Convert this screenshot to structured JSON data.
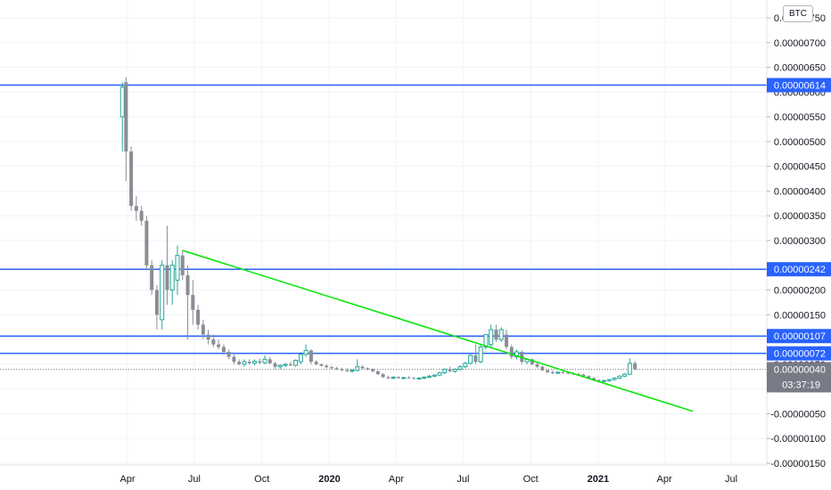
{
  "currency_label": "BTC",
  "countdown": "03:37:19",
  "colors": {
    "up": "#26a69a",
    "down": "#8a8d94",
    "hline": "#2962ff",
    "trendline": "#00e600",
    "price_badge_bg": "#2962ff",
    "last_price_bg": "#787b86",
    "grid": "#f0f3fa"
  },
  "chart_data": {
    "type": "candlestick",
    "ylim": [
      -1.5e-06,
      7.5e-06
    ],
    "y_ticks": [
      {
        "value": 7.5e-06,
        "label": "0.00000750"
      },
      {
        "value": 7e-06,
        "label": "0.00000700"
      },
      {
        "value": 6.5e-06,
        "label": "0.00000650"
      },
      {
        "value": 6e-06,
        "label": "0.00000600"
      },
      {
        "value": 5.5e-06,
        "label": "0.00000550"
      },
      {
        "value": 5e-06,
        "label": "0.00000500"
      },
      {
        "value": 4.5e-06,
        "label": "0.00000450"
      },
      {
        "value": 4e-06,
        "label": "0.00000400"
      },
      {
        "value": 3.5e-06,
        "label": "0.00000350"
      },
      {
        "value": 3e-06,
        "label": "0.00000300"
      },
      {
        "value": 2.5e-06,
        "label": "0.00000250"
      },
      {
        "value": 2e-06,
        "label": "0.00000200"
      },
      {
        "value": 1.5e-06,
        "label": "0.00000150"
      },
      {
        "value": 1e-06,
        "label": "0.00000100"
      },
      {
        "value": 5e-07,
        "label": "0.00000050"
      },
      {
        "value": 0.0,
        "label": "0.00000000"
      },
      {
        "value": -5e-07,
        "label": "-0.00000050"
      },
      {
        "value": -1e-06,
        "label": "-0.00000100"
      },
      {
        "value": -1.5e-06,
        "label": "-0.00000150"
      }
    ],
    "x_ticks": [
      {
        "date": "2019-04-01",
        "label": "Apr",
        "bold": false
      },
      {
        "date": "2019-07-01",
        "label": "Jul",
        "bold": false
      },
      {
        "date": "2019-10-01",
        "label": "Oct",
        "bold": false
      },
      {
        "date": "2020-01-01",
        "label": "2020",
        "bold": true
      },
      {
        "date": "2020-04-01",
        "label": "Apr",
        "bold": false
      },
      {
        "date": "2020-07-01",
        "label": "Jul",
        "bold": false
      },
      {
        "date": "2020-10-01",
        "label": "Oct",
        "bold": false
      },
      {
        "date": "2021-01-01",
        "label": "2021",
        "bold": true
      },
      {
        "date": "2021-04-01",
        "label": "Apr",
        "bold": false
      },
      {
        "date": "2021-07-01",
        "label": "Jul",
        "bold": false
      }
    ],
    "horizontal_lines": [
      {
        "value": 6.14e-06,
        "label": "0.00000614"
      },
      {
        "value": 2.42e-06,
        "label": "0.00000242"
      },
      {
        "value": 1.07e-06,
        "label": "0.00000107"
      },
      {
        "value": 7.2e-07,
        "label": "0.00000072"
      }
    ],
    "trendline": {
      "start": {
        "date": "2019-06-15",
        "value": 2.8e-06
      },
      "end": {
        "date": "2021-05-10",
        "value": -4.5e-07
      }
    },
    "last_price": {
      "value": 4e-07,
      "label": "0.00000040"
    },
    "candles": [
      {
        "date": "2019-03-25",
        "o": 5.5e-06,
        "h": 6.2e-06,
        "l": 4.8e-06,
        "c": 6.1e-06
      },
      {
        "date": "2019-03-30",
        "o": 6.2e-06,
        "h": 6.3e-06,
        "l": 4.2e-06,
        "c": 4.8e-06
      },
      {
        "date": "2019-04-06",
        "o": 4.8e-06,
        "h": 4.9e-06,
        "l": 3.6e-06,
        "c": 3.7e-06
      },
      {
        "date": "2019-04-13",
        "o": 3.7e-06,
        "h": 3.9e-06,
        "l": 3.4e-06,
        "c": 3.6e-06
      },
      {
        "date": "2019-04-20",
        "o": 3.6e-06,
        "h": 3.7e-06,
        "l": 3.3e-06,
        "c": 3.4e-06
      },
      {
        "date": "2019-04-27",
        "o": 3.4e-06,
        "h": 3.5e-06,
        "l": 2.4e-06,
        "c": 2.5e-06
      },
      {
        "date": "2019-05-04",
        "o": 2.5e-06,
        "h": 2.6e-06,
        "l": 1.9e-06,
        "c": 2e-06
      },
      {
        "date": "2019-05-11",
        "o": 2e-06,
        "h": 2.1e-06,
        "l": 1.2e-06,
        "c": 1.5e-06
      },
      {
        "date": "2019-05-18",
        "o": 1.4e-06,
        "h": 2.6e-06,
        "l": 1.2e-06,
        "c": 2.5e-06
      },
      {
        "date": "2019-05-25",
        "o": 2.5e-06,
        "h": 3.3e-06,
        "l": 1.7e-06,
        "c": 2e-06
      },
      {
        "date": "2019-06-01",
        "o": 2e-06,
        "h": 2.6e-06,
        "l": 1.7e-06,
        "c": 2.5e-06
      },
      {
        "date": "2019-06-08",
        "o": 2.2e-06,
        "h": 2.9e-06,
        "l": 1.9e-06,
        "c": 2.7e-06
      },
      {
        "date": "2019-06-15",
        "o": 2.7e-06,
        "h": 2.8e-06,
        "l": 2.2e-06,
        "c": 2.3e-06
      },
      {
        "date": "2019-06-22",
        "o": 2.3e-06,
        "h": 2.5e-06,
        "l": 1e-06,
        "c": 1.9e-06
      },
      {
        "date": "2019-06-29",
        "o": 1.9e-06,
        "h": 2.2e-06,
        "l": 1.3e-06,
        "c": 1.6e-06
      },
      {
        "date": "2019-07-06",
        "o": 1.6e-06,
        "h": 1.7e-06,
        "l": 1.2e-06,
        "c": 1.3e-06
      },
      {
        "date": "2019-07-13",
        "o": 1.3e-06,
        "h": 1.4e-06,
        "l": 1e-06,
        "c": 1.1e-06
      },
      {
        "date": "2019-07-20",
        "o": 1.1e-06,
        "h": 1.2e-06,
        "l": 9e-07,
        "c": 1e-06
      },
      {
        "date": "2019-07-27",
        "o": 1e-06,
        "h": 1.1e-06,
        "l": 8.5e-07,
        "c": 9e-07
      },
      {
        "date": "2019-08-03",
        "o": 9e-07,
        "h": 1e-06,
        "l": 8e-07,
        "c": 8.5e-07
      },
      {
        "date": "2019-08-10",
        "o": 8.5e-07,
        "h": 9e-07,
        "l": 7e-07,
        "c": 7.5e-07
      },
      {
        "date": "2019-08-17",
        "o": 7.5e-07,
        "h": 8e-07,
        "l": 6e-07,
        "c": 6.5e-07
      },
      {
        "date": "2019-08-24",
        "o": 6.5e-07,
        "h": 7e-07,
        "l": 5e-07,
        "c": 5.5e-07
      },
      {
        "date": "2019-08-31",
        "o": 5.5e-07,
        "h": 6e-07,
        "l": 4.8e-07,
        "c": 5e-07
      },
      {
        "date": "2019-09-07",
        "o": 5e-07,
        "h": 6e-07,
        "l": 4.5e-07,
        "c": 5.5e-07
      },
      {
        "date": "2019-09-14",
        "o": 5.5e-07,
        "h": 6e-07,
        "l": 5e-07,
        "c": 5.2e-07
      },
      {
        "date": "2019-09-21",
        "o": 5.2e-07,
        "h": 6e-07,
        "l": 4.8e-07,
        "c": 5.6e-07
      },
      {
        "date": "2019-09-28",
        "o": 5.6e-07,
        "h": 6.2e-07,
        "l": 5e-07,
        "c": 5.3e-07
      },
      {
        "date": "2019-10-05",
        "o": 5.3e-07,
        "h": 6.8e-07,
        "l": 5e-07,
        "c": 6e-07
      },
      {
        "date": "2019-10-12",
        "o": 6e-07,
        "h": 6.5e-07,
        "l": 5e-07,
        "c": 5.2e-07
      },
      {
        "date": "2019-10-19",
        "o": 5.2e-07,
        "h": 5.5e-07,
        "l": 4e-07,
        "c": 4.5e-07
      },
      {
        "date": "2019-10-26",
        "o": 4.5e-07,
        "h": 5e-07,
        "l": 4e-07,
        "c": 4.8e-07
      },
      {
        "date": "2019-11-02",
        "o": 4.8e-07,
        "h": 5.2e-07,
        "l": 4.4e-07,
        "c": 5e-07
      },
      {
        "date": "2019-11-09",
        "o": 5e-07,
        "h": 5.5e-07,
        "l": 4.6e-07,
        "c": 4.8e-07
      },
      {
        "date": "2019-11-16",
        "o": 4.8e-07,
        "h": 6e-07,
        "l": 4.5e-07,
        "c": 5.8e-07
      },
      {
        "date": "2019-11-23",
        "o": 5.5e-07,
        "h": 7.5e-07,
        "l": 5e-07,
        "c": 7e-07
      },
      {
        "date": "2019-11-30",
        "o": 7e-07,
        "h": 9e-07,
        "l": 6.5e-07,
        "c": 7.8e-07
      },
      {
        "date": "2019-12-07",
        "o": 7.8e-07,
        "h": 8e-07,
        "l": 5e-07,
        "c": 5.5e-07
      },
      {
        "date": "2019-12-14",
        "o": 5.5e-07,
        "h": 5.8e-07,
        "l": 4.8e-07,
        "c": 5e-07
      },
      {
        "date": "2019-12-21",
        "o": 5e-07,
        "h": 5.2e-07,
        "l": 4.5e-07,
        "c": 4.7e-07
      },
      {
        "date": "2019-12-28",
        "o": 4.7e-07,
        "h": 5e-07,
        "l": 4.2e-07,
        "c": 4.4e-07
      },
      {
        "date": "2020-01-04",
        "o": 4.4e-07,
        "h": 4.7e-07,
        "l": 4e-07,
        "c": 4.2e-07
      },
      {
        "date": "2020-01-11",
        "o": 4.2e-07,
        "h": 4.5e-07,
        "l": 3.8e-07,
        "c": 4e-07
      },
      {
        "date": "2020-01-18",
        "o": 4e-07,
        "h": 4.3e-07,
        "l": 3.6e-07,
        "c": 3.8e-07
      },
      {
        "date": "2020-01-25",
        "o": 3.8e-07,
        "h": 4.2e-07,
        "l": 3.4e-07,
        "c": 3.6e-07
      },
      {
        "date": "2020-02-01",
        "o": 3.6e-07,
        "h": 4e-07,
        "l": 3.3e-07,
        "c": 3.8e-07
      },
      {
        "date": "2020-02-08",
        "o": 3.8e-07,
        "h": 6e-07,
        "l": 3.5e-07,
        "c": 4.5e-07
      },
      {
        "date": "2020-02-15",
        "o": 4.5e-07,
        "h": 4.8e-07,
        "l": 4e-07,
        "c": 4.2e-07
      },
      {
        "date": "2020-02-22",
        "o": 4.2e-07,
        "h": 4.4e-07,
        "l": 3.8e-07,
        "c": 4e-07
      },
      {
        "date": "2020-02-29",
        "o": 4e-07,
        "h": 4.2e-07,
        "l": 3.4e-07,
        "c": 3.6e-07
      },
      {
        "date": "2020-03-07",
        "o": 3.6e-07,
        "h": 3.8e-07,
        "l": 2.8e-07,
        "c": 3e-07
      },
      {
        "date": "2020-03-14",
        "o": 3e-07,
        "h": 3.2e-07,
        "l": 2.2e-07,
        "c": 2.4e-07
      },
      {
        "date": "2020-03-21",
        "o": 2.4e-07,
        "h": 2.7e-07,
        "l": 2e-07,
        "c": 2.2e-07
      },
      {
        "date": "2020-03-28",
        "o": 2.2e-07,
        "h": 2.6e-07,
        "l": 2e-07,
        "c": 2.4e-07
      },
      {
        "date": "2020-04-04",
        "o": 2.4e-07,
        "h": 2.6e-07,
        "l": 2.1e-07,
        "c": 2.2e-07
      },
      {
        "date": "2020-04-11",
        "o": 2.2e-07,
        "h": 2.5e-07,
        "l": 2e-07,
        "c": 2.3e-07
      },
      {
        "date": "2020-04-18",
        "o": 2.3e-07,
        "h": 2.6e-07,
        "l": 2.1e-07,
        "c": 2.2e-07
      },
      {
        "date": "2020-04-25",
        "o": 2.2e-07,
        "h": 2.5e-07,
        "l": 2e-07,
        "c": 2.1e-07
      },
      {
        "date": "2020-05-02",
        "o": 2.1e-07,
        "h": 2.4e-07,
        "l": 2e-07,
        "c": 2.2e-07
      },
      {
        "date": "2020-05-09",
        "o": 2.2e-07,
        "h": 2.6e-07,
        "l": 2e-07,
        "c": 2.4e-07
      },
      {
        "date": "2020-05-16",
        "o": 2.4e-07,
        "h": 2.8e-07,
        "l": 2.2e-07,
        "c": 2.6e-07
      },
      {
        "date": "2020-05-23",
        "o": 2.6e-07,
        "h": 3e-07,
        "l": 2.4e-07,
        "c": 2.8e-07
      },
      {
        "date": "2020-05-30",
        "o": 2.8e-07,
        "h": 3.5e-07,
        "l": 2.6e-07,
        "c": 3.3e-07
      },
      {
        "date": "2020-06-06",
        "o": 3.3e-07,
        "h": 4.2e-07,
        "l": 3e-07,
        "c": 4e-07
      },
      {
        "date": "2020-06-13",
        "o": 4e-07,
        "h": 4.5e-07,
        "l": 3.4e-07,
        "c": 3.6e-07
      },
      {
        "date": "2020-06-20",
        "o": 3.6e-07,
        "h": 4.2e-07,
        "l": 3.3e-07,
        "c": 4e-07
      },
      {
        "date": "2020-06-27",
        "o": 4e-07,
        "h": 4.8e-07,
        "l": 3.7e-07,
        "c": 4.5e-07
      },
      {
        "date": "2020-07-04",
        "o": 4.5e-07,
        "h": 5.5e-07,
        "l": 4.2e-07,
        "c": 5.2e-07
      },
      {
        "date": "2020-07-11",
        "o": 5.2e-07,
        "h": 7e-07,
        "l": 5e-07,
        "c": 6.8e-07
      },
      {
        "date": "2020-07-18",
        "o": 6.8e-07,
        "h": 9e-07,
        "l": 5e-07,
        "c": 5.5e-07
      },
      {
        "date": "2020-07-25",
        "o": 5.5e-07,
        "h": 9e-07,
        "l": 5.2e-07,
        "c": 8.5e-07
      },
      {
        "date": "2020-08-01",
        "o": 8.5e-07,
        "h": 1.1e-06,
        "l": 8e-07,
        "c": 1.1e-06
      },
      {
        "date": "2020-08-08",
        "o": 9e-07,
        "h": 1.3e-06,
        "l": 8.5e-07,
        "c": 1.2e-06
      },
      {
        "date": "2020-08-15",
        "o": 1.2e-06,
        "h": 1.3e-06,
        "l": 9.5e-07,
        "c": 1e-06
      },
      {
        "date": "2020-08-22",
        "o": 1e-06,
        "h": 1.25e-06,
        "l": 9.5e-07,
        "c": 1.2e-06
      },
      {
        "date": "2020-08-29",
        "o": 1.1e-06,
        "h": 1.2e-06,
        "l": 8e-07,
        "c": 8.5e-07
      },
      {
        "date": "2020-09-05",
        "o": 8.5e-07,
        "h": 9e-07,
        "l": 6e-07,
        "c": 6.5e-07
      },
      {
        "date": "2020-09-12",
        "o": 6.5e-07,
        "h": 8e-07,
        "l": 6e-07,
        "c": 7.5e-07
      },
      {
        "date": "2020-09-19",
        "o": 7.5e-07,
        "h": 7.8e-07,
        "l": 5e-07,
        "c": 5.5e-07
      },
      {
        "date": "2020-09-26",
        "o": 5.5e-07,
        "h": 6.2e-07,
        "l": 5e-07,
        "c": 6e-07
      },
      {
        "date": "2020-10-03",
        "o": 6e-07,
        "h": 6.2e-07,
        "l": 4.8e-07,
        "c": 5e-07
      },
      {
        "date": "2020-10-10",
        "o": 5e-07,
        "h": 5.4e-07,
        "l": 4.2e-07,
        "c": 4.5e-07
      },
      {
        "date": "2020-10-17",
        "o": 4.5e-07,
        "h": 4.8e-07,
        "l": 3.6e-07,
        "c": 3.8e-07
      },
      {
        "date": "2020-10-24",
        "o": 3.8e-07,
        "h": 4e-07,
        "l": 3.2e-07,
        "c": 3.4e-07
      },
      {
        "date": "2020-10-31",
        "o": 3.4e-07,
        "h": 3.8e-07,
        "l": 3e-07,
        "c": 3.2e-07
      },
      {
        "date": "2020-11-07",
        "o": 3.2e-07,
        "h": 3.6e-07,
        "l": 3e-07,
        "c": 3.4e-07
      },
      {
        "date": "2020-11-14",
        "o": 3.4e-07,
        "h": 3.7e-07,
        "l": 3.1e-07,
        "c": 3.3e-07
      },
      {
        "date": "2020-11-21",
        "o": 3.3e-07,
        "h": 3.6e-07,
        "l": 3e-07,
        "c": 3.2e-07
      },
      {
        "date": "2020-11-28",
        "o": 3.2e-07,
        "h": 3.4e-07,
        "l": 2.8e-07,
        "c": 3e-07
      },
      {
        "date": "2020-12-05",
        "o": 3e-07,
        "h": 3.3e-07,
        "l": 2.7e-07,
        "c": 2.9e-07
      },
      {
        "date": "2020-12-12",
        "o": 2.9e-07,
        "h": 3.1e-07,
        "l": 2.4e-07,
        "c": 2.6e-07
      },
      {
        "date": "2020-12-19",
        "o": 2.6e-07,
        "h": 2.8e-07,
        "l": 2.1e-07,
        "c": 2.2e-07
      },
      {
        "date": "2020-12-26",
        "o": 2.2e-07,
        "h": 2.4e-07,
        "l": 1.6e-07,
        "c": 1.8e-07
      },
      {
        "date": "2021-01-02",
        "o": 1.8e-07,
        "h": 2e-07,
        "l": 1.4e-07,
        "c": 1.6e-07
      },
      {
        "date": "2021-01-09",
        "o": 1.6e-07,
        "h": 1.9e-07,
        "l": 1.4e-07,
        "c": 1.7e-07
      },
      {
        "date": "2021-01-16",
        "o": 1.7e-07,
        "h": 2e-07,
        "l": 1.5e-07,
        "c": 1.9e-07
      },
      {
        "date": "2021-01-23",
        "o": 1.9e-07,
        "h": 2.4e-07,
        "l": 1.7e-07,
        "c": 2.2e-07
      },
      {
        "date": "2021-01-30",
        "o": 2.2e-07,
        "h": 2.8e-07,
        "l": 2e-07,
        "c": 2.6e-07
      },
      {
        "date": "2021-02-06",
        "o": 2.6e-07,
        "h": 3.2e-07,
        "l": 2.4e-07,
        "c": 3e-07
      },
      {
        "date": "2021-02-13",
        "o": 3e-07,
        "h": 6.2e-07,
        "l": 2.8e-07,
        "c": 5.2e-07
      },
      {
        "date": "2021-02-20",
        "o": 5.2e-07,
        "h": 5.6e-07,
        "l": 3.8e-07,
        "c": 4e-07
      }
    ]
  }
}
